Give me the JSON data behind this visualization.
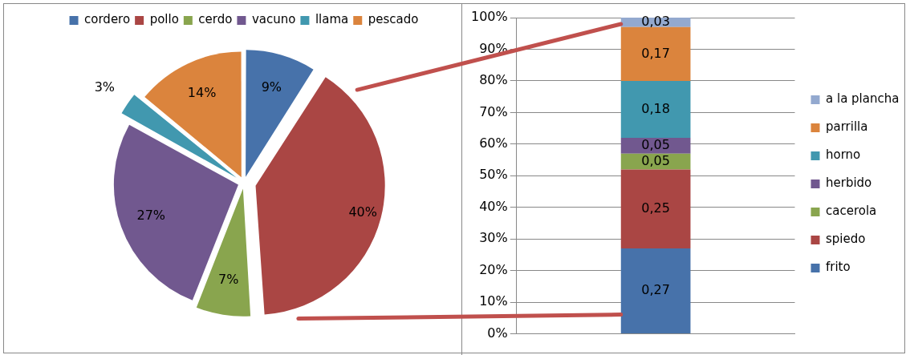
{
  "chart_data": [
    {
      "type": "pie",
      "categories": [
        "cordero",
        "pollo",
        "cerdo",
        "vacuno",
        "llama",
        "pescado"
      ],
      "values": [
        9,
        40,
        7,
        27,
        3,
        14
      ],
      "colors": [
        "#4772aa",
        "#aa4644",
        "#89a54e",
        "#71588f",
        "#4198af",
        "#db843d"
      ],
      "value_labels": [
        "9%",
        "40%",
        "7%",
        "27%",
        "3%",
        "14%"
      ],
      "legend": "top"
    },
    {
      "type": "bar",
      "stacked": true,
      "categories": [
        null
      ],
      "ylim": [
        0,
        1
      ],
      "yticks": [
        {
          "value": 0,
          "label": "0%"
        },
        {
          "value": 0.1,
          "label": "10%"
        },
        {
          "value": 0.2,
          "label": "20%"
        },
        {
          "value": 0.3,
          "label": "30%"
        },
        {
          "value": 0.4,
          "label": "40%"
        },
        {
          "value": 0.5,
          "label": "50%"
        },
        {
          "value": 0.6,
          "label": "60%"
        },
        {
          "value": 0.7,
          "label": "70%"
        },
        {
          "value": 0.8,
          "label": "80%"
        },
        {
          "value": 0.9,
          "label": "90%"
        },
        {
          "value": 1,
          "label": "100%"
        }
      ],
      "grid": "y",
      "legend": "right",
      "series": [
        {
          "name": "frito",
          "color": "#4772aa",
          "values": [
            0.27
          ],
          "value_labels": [
            "0,27"
          ]
        },
        {
          "name": "spiedo",
          "color": "#aa4644",
          "values": [
            0.25
          ],
          "value_labels": [
            "0,25"
          ]
        },
        {
          "name": "cacerola",
          "color": "#89a54e",
          "values": [
            0.05
          ],
          "value_labels": [
            "0,05"
          ]
        },
        {
          "name": "herbido",
          "color": "#71588f",
          "values": [
            0.05
          ],
          "value_labels": [
            "0,05"
          ]
        },
        {
          "name": "horno",
          "color": "#4198af",
          "values": [
            0.18
          ],
          "value_labels": [
            "0,18"
          ]
        },
        {
          "name": "parrilla",
          "color": "#db843d",
          "values": [
            0.17
          ],
          "value_labels": [
            "0,17"
          ]
        },
        {
          "name": "a la plancha",
          "color": "#93a9cf",
          "values": [
            0.03
          ],
          "value_labels": [
            "0,03"
          ]
        }
      ]
    }
  ]
}
